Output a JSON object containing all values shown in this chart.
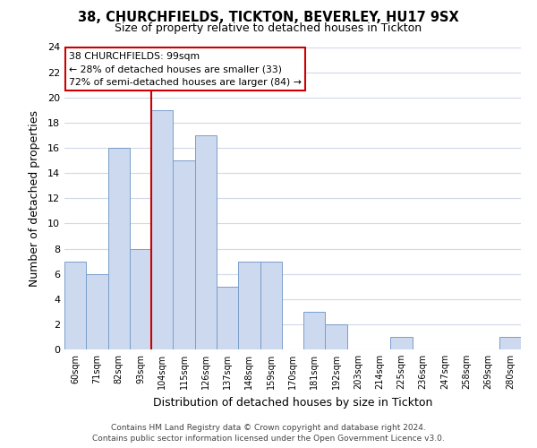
{
  "title": "38, CHURCHFIELDS, TICKTON, BEVERLEY, HU17 9SX",
  "subtitle": "Size of property relative to detached houses in Tickton",
  "xlabel": "Distribution of detached houses by size in Tickton",
  "ylabel": "Number of detached properties",
  "bin_labels": [
    "60sqm",
    "71sqm",
    "82sqm",
    "93sqm",
    "104sqm",
    "115sqm",
    "126sqm",
    "137sqm",
    "148sqm",
    "159sqm",
    "170sqm",
    "181sqm",
    "192sqm",
    "203sqm",
    "214sqm",
    "225sqm",
    "236sqm",
    "247sqm",
    "258sqm",
    "269sqm",
    "280sqm"
  ],
  "bar_heights": [
    7,
    6,
    16,
    8,
    19,
    15,
    17,
    5,
    7,
    7,
    0,
    3,
    2,
    0,
    0,
    1,
    0,
    0,
    0,
    0,
    1
  ],
  "bar_color": "#ccd9ee",
  "bar_edge_color": "#7a9fcb",
  "red_line_x": 3.5,
  "marker_color": "#cc0000",
  "annotation_line1": "38 CHURCHFIELDS: 99sqm",
  "annotation_line2": "← 28% of detached houses are smaller (33)",
  "annotation_line3": "72% of semi-detached houses are larger (84) →",
  "ylim": [
    0,
    24
  ],
  "yticks": [
    0,
    2,
    4,
    6,
    8,
    10,
    12,
    14,
    16,
    18,
    20,
    22,
    24
  ],
  "footer1": "Contains HM Land Registry data © Crown copyright and database right 2024.",
  "footer2": "Contains public sector information licensed under the Open Government Licence v3.0.",
  "bg_color": "#ffffff",
  "grid_color": "#d0d8e8",
  "title_fontsize": 10.5,
  "subtitle_fontsize": 9
}
